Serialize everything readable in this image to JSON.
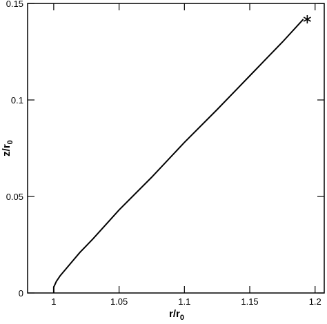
{
  "chart_data": {
    "type": "line",
    "xlabel": [
      "r/r",
      "0"
    ],
    "ylabel": [
      "z/r",
      "0"
    ],
    "xlim": [
      0.98,
      1.207
    ],
    "ylim": [
      0,
      0.15
    ],
    "xticks": [
      1,
      1.05,
      1.1,
      1.15,
      1.2
    ],
    "yticks": [
      0,
      0.05,
      0.1,
      0.15
    ],
    "series": [
      {
        "color": "#000000",
        "style": "line",
        "x": [
          1.0,
          1.0,
          1.002,
          1.005,
          1.01,
          1.02,
          1.03,
          1.05,
          1.075,
          1.1,
          1.125,
          1.15,
          1.175,
          1.191
        ],
        "values": [
          0,
          0.003,
          0.006,
          0.009,
          0.013,
          0.021,
          0.028,
          0.043,
          0.06,
          0.078,
          0.095,
          0.1125,
          0.13,
          0.1418
        ]
      },
      {
        "color": "#000000",
        "style": "star",
        "x": [
          1.194
        ],
        "values": [
          0.1418
        ]
      }
    ]
  }
}
